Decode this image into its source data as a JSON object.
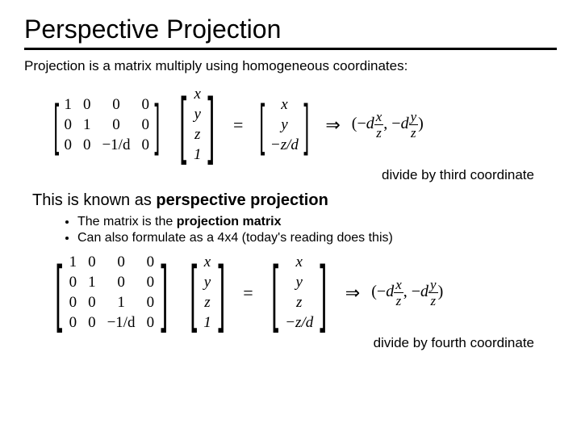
{
  "title": "Perspective Projection",
  "subtitle": "Projection is a matrix multiply using homogeneous coordinates:",
  "caption1": "divide by third coordinate",
  "line2_pre": "This is known as ",
  "line2_bold": "perspective projection",
  "bullet1_pre": "The matrix is the ",
  "bullet1_bold": "projection matrix",
  "bullet2": "Can also formulate as a 4x4 (today's reading does this)",
  "caption2": "divide by fourth coordinate",
  "mat3x4": [
    "1",
    "0",
    "0",
    "0",
    "0",
    "1",
    "0",
    "0",
    "0",
    "0",
    "−1/d",
    "0"
  ],
  "mat4x4": [
    "1",
    "0",
    "0",
    "0",
    "0",
    "1",
    "0",
    "0",
    "0",
    "0",
    "1",
    "0",
    "0",
    "0",
    "−1/d",
    "0"
  ],
  "vec4": [
    "x",
    "y",
    "z",
    "1"
  ],
  "out3": [
    "x",
    "y",
    "−z/d"
  ],
  "out4": [
    "x",
    "y",
    "z",
    "−z/d"
  ],
  "eq": "=",
  "arrow": "⇒",
  "result_open": "(−",
  "d": "d",
  "x": "x",
  "y": "y",
  "z": "z",
  "comma": ",   −",
  "close": ")",
  "colors": {
    "bg": "#ffffff",
    "fg": "#000000"
  }
}
